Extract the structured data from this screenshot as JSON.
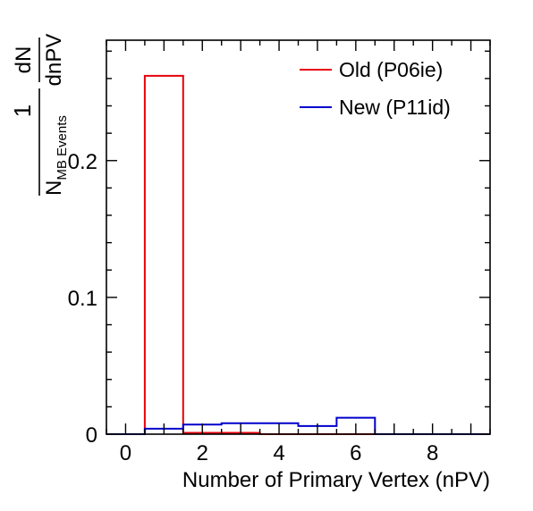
{
  "chart_data": {
    "type": "histogram",
    "title": "",
    "xlabel": "Number of Primary Vertex (nPV)",
    "ylabel": {
      "frac_numerator": "1",
      "frac_denominator_main": "N",
      "frac_denominator_sub": "MB Events",
      "deriv_numerator": "dN",
      "deriv_denominator": "dnPV"
    },
    "xlim": [
      -0.5,
      9.5
    ],
    "ylim": [
      0,
      0.288
    ],
    "x_ticks": [
      0,
      2,
      4,
      6,
      8
    ],
    "y_ticks": [
      0,
      0.1,
      0.2
    ],
    "y_tick_labels": [
      "0",
      "0.1",
      "0.2"
    ],
    "bin_edges": [
      -0.5,
      0.5,
      1.5,
      2.5,
      3.5,
      4.5,
      5.5,
      6.5,
      7.5,
      8.5,
      9.5
    ],
    "series": [
      {
        "name": "Old (P06ie)",
        "color": "#e8000b",
        "values": [
          0,
          0.262,
          0.001,
          0.001,
          0,
          0,
          0,
          0,
          0,
          0
        ]
      },
      {
        "name": "New (P11id)",
        "color": "#0000cc",
        "values": [
          0,
          0.004,
          0.007,
          0.008,
          0.008,
          0.006,
          0.012,
          0,
          0,
          0
        ]
      }
    ],
    "legend_position": "top-right",
    "grid": false
  }
}
